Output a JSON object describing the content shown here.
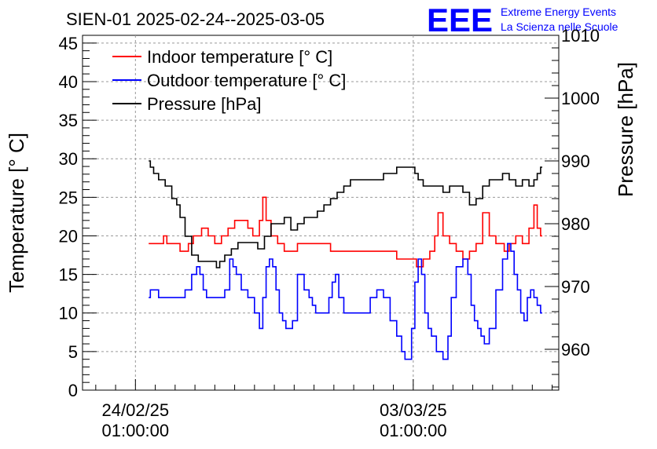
{
  "chart_data": {
    "type": "line",
    "title": "SIEN-01 2025-02-24--2025-03-05",
    "ylabel_left": "Temperature [° C]",
    "ylabel_right": "Pressure [hPa]",
    "ylim_left": [
      0,
      46
    ],
    "ylim_right": [
      953.5,
      1010
    ],
    "yticks_left": [
      "0",
      "5",
      "10",
      "15",
      "20",
      "25",
      "30",
      "35",
      "40",
      "45"
    ],
    "yticks_right": [
      "960",
      "970",
      "980",
      "990",
      "1000",
      "1010"
    ],
    "xticks": [
      {
        "t": 0,
        "label1": "24/02/25",
        "label2": "01:00:00"
      },
      {
        "t": 168,
        "label1": "03/03/25",
        "label2": "01:00:00"
      }
    ],
    "xlim_hours": [
      -32,
      256
    ],
    "series": [
      {
        "name": "Indoor temperature [° C]",
        "axis": "left",
        "color": "#ff0000",
        "x": [
          8,
          12,
          16,
          18,
          20,
          24,
          30,
          34,
          36,
          38,
          42,
          46,
          50,
          54,
          58,
          62,
          66,
          70,
          72,
          74,
          76,
          78,
          80,
          84,
          88,
          92,
          96,
          100,
          104,
          108,
          112,
          116,
          120,
          124,
          128,
          132,
          136,
          140,
          144,
          148,
          152,
          156,
          160,
          164,
          166,
          168,
          172,
          176,
          180,
          182,
          184,
          188,
          192,
          196,
          200,
          204,
          208,
          212,
          216,
          220,
          222,
          224,
          228,
          232,
          236,
          240,
          242,
          244,
          246
        ],
        "y": [
          19,
          19,
          19,
          20,
          19,
          19,
          18,
          19,
          20,
          20,
          21,
          20,
          19,
          20,
          21,
          22,
          22,
          21,
          20,
          20,
          22,
          25,
          22,
          20,
          19,
          18,
          18,
          19,
          19,
          19,
          19,
          19,
          18,
          18,
          18,
          18,
          18,
          18,
          18,
          18,
          18,
          18,
          17,
          17,
          17,
          17,
          16,
          17,
          18,
          20,
          23,
          20,
          19,
          18,
          17,
          18,
          19,
          23,
          20,
          19,
          19,
          18,
          19,
          20,
          19,
          21,
          24,
          21,
          20
        ]
      },
      {
        "name": "Outdoor temperature [° C]",
        "axis": "left",
        "color": "#0000ff",
        "x": [
          8,
          10,
          12,
          16,
          20,
          24,
          28,
          32,
          36,
          38,
          40,
          42,
          44,
          46,
          48,
          52,
          56,
          58,
          60,
          62,
          66,
          70,
          74,
          76,
          78,
          80,
          82,
          84,
          86,
          88,
          90,
          92,
          94,
          96,
          100,
          104,
          106,
          108,
          110,
          112,
          114,
          116,
          118,
          120,
          122,
          124,
          128,
          132,
          136,
          140,
          144,
          148,
          152,
          156,
          160,
          162,
          164,
          166,
          168,
          170,
          172,
          174,
          176,
          178,
          180,
          184,
          188,
          190,
          192,
          196,
          200,
          202,
          204,
          206,
          208,
          210,
          212,
          216,
          220,
          224,
          226,
          228,
          230,
          232,
          234,
          236,
          238,
          240,
          242,
          244,
          246
        ],
        "y": [
          12,
          13,
          13,
          12,
          12,
          12,
          12,
          13,
          15,
          16,
          15,
          13,
          12,
          12,
          12,
          12,
          13,
          17,
          16,
          15,
          13,
          12,
          10,
          8,
          12,
          16,
          17,
          16,
          13,
          10,
          9,
          8,
          8,
          9,
          15,
          13,
          12,
          11,
          10,
          10,
          10,
          10,
          12,
          14,
          15,
          12,
          10,
          10,
          10,
          10,
          12,
          13,
          12,
          9,
          7,
          5,
          4,
          4,
          8,
          14,
          17,
          15,
          10,
          8,
          7,
          5,
          4,
          7,
          12,
          16,
          17,
          15,
          11,
          9,
          8,
          7,
          6,
          8,
          13,
          17,
          19,
          18,
          15,
          13,
          10,
          9,
          12,
          13,
          12,
          11,
          10
        ]
      },
      {
        "name": "Pressure [hPa]",
        "axis": "right",
        "color": "#000000",
        "x": [
          8,
          10,
          12,
          16,
          20,
          24,
          26,
          28,
          32,
          36,
          40,
          44,
          48,
          50,
          52,
          56,
          60,
          64,
          68,
          72,
          76,
          80,
          84,
          88,
          92,
          96,
          100,
          104,
          108,
          112,
          116,
          120,
          124,
          128,
          132,
          136,
          140,
          144,
          148,
          152,
          156,
          160,
          164,
          168,
          170,
          172,
          176,
          180,
          184,
          188,
          192,
          196,
          200,
          204,
          208,
          212,
          216,
          220,
          224,
          228,
          232,
          236,
          240,
          242,
          244,
          246
        ],
        "y": [
          990,
          989,
          988,
          987,
          986,
          984,
          983,
          981,
          978,
          975,
          974,
          974,
          974,
          973,
          974,
          975,
          976,
          977,
          977,
          977,
          976,
          978,
          980,
          980,
          981,
          979,
          980,
          981,
          981,
          982,
          983,
          984,
          985,
          986,
          987,
          987,
          987,
          987,
          987,
          988,
          988,
          989,
          989,
          989,
          988,
          987,
          986,
          986,
          986,
          985,
          986,
          986,
          985,
          983,
          984,
          986,
          987,
          987,
          988,
          987,
          986,
          987,
          986,
          987,
          988,
          989
        ]
      }
    ]
  },
  "legend": {
    "indoor": "Indoor temperature [° C]",
    "outdoor": "Outdoor temperature [° C]",
    "pressure": "Pressure [hPa]"
  },
  "logo": {
    "letters": "EEE",
    "line1": "Extreme Energy Events",
    "line2": "La Scienza nelle Scuole",
    "color": "#0000ff"
  }
}
